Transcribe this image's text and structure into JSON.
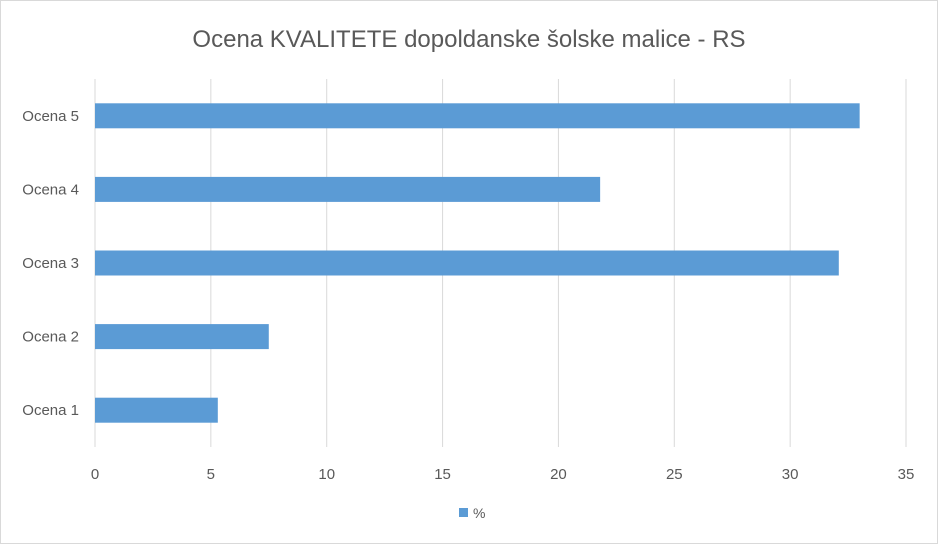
{
  "chart_data": {
    "type": "bar",
    "orientation": "horizontal",
    "title": "Ocena KVALITETE dopoldanske šolske malice - RS",
    "categories": [
      "Ocena 1",
      "Ocena 2",
      "Ocena 3",
      "Ocena 4",
      "Ocena 5"
    ],
    "series": [
      {
        "name": "%",
        "values": [
          5.3,
          7.5,
          32.1,
          21.8,
          33.0
        ],
        "color": "#5b9bd5"
      }
    ],
    "xlim": [
      0,
      35
    ],
    "xticks": [
      "0",
      "5",
      "10",
      "15",
      "20",
      "25",
      "30",
      "35"
    ],
    "grid": true,
    "legend": "bottom"
  }
}
